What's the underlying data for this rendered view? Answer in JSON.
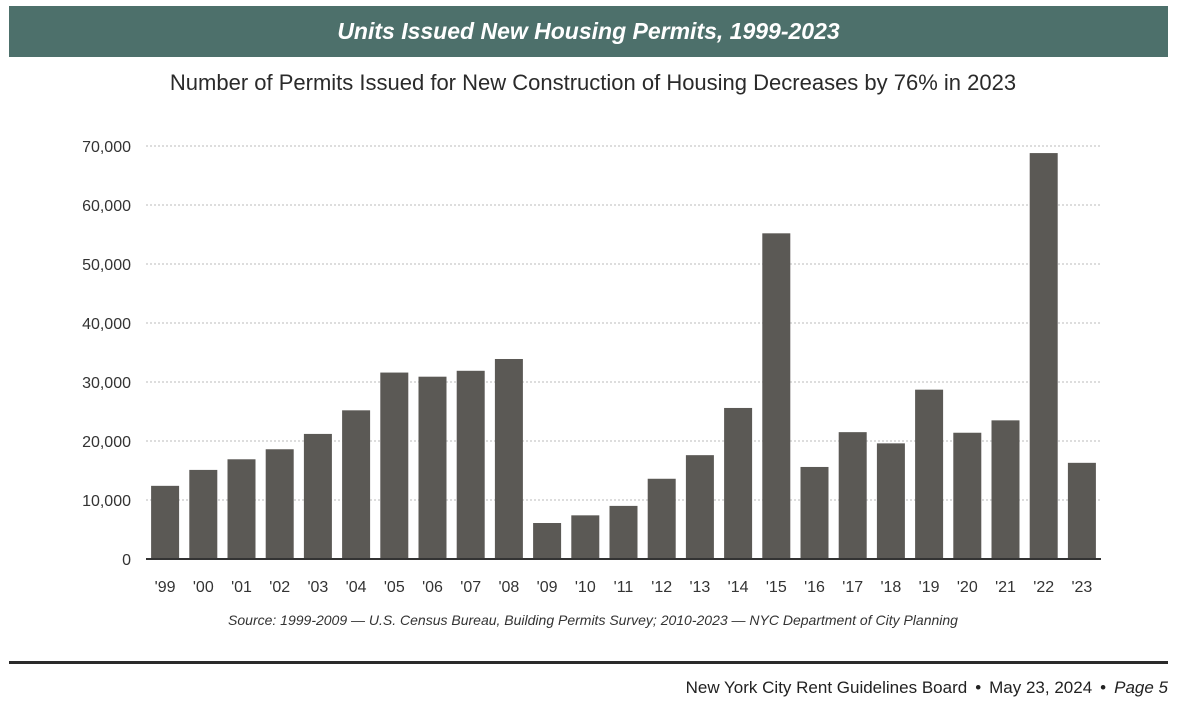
{
  "header": {
    "banner_title": "Units Issued New Housing Permits, 1999-2023",
    "subtitle": "Number of Permits Issued for New Construction of Housing Decreases by 76% in 2023"
  },
  "source_note": "Source: 1999-2009 — U.S. Census Bureau, Building Permits Survey; 2010-2023 — NYC Department of City Planning",
  "footer": {
    "organization": "New York City Rent Guidelines Board",
    "separator": "•",
    "date": "May 23, 2024",
    "page": "Page 5"
  },
  "colors": {
    "banner": "#4d706b",
    "bar": "#5b5955",
    "grid": "#bbbbbb",
    "axis": "#333333"
  },
  "chart_data": {
    "type": "bar",
    "title": "Number of Permits Issued for New Construction of Housing Decreases by 76% in 2023",
    "xlabel": "",
    "ylabel": "",
    "ylim": [
      0,
      70000
    ],
    "yticks": [
      0,
      10000,
      20000,
      30000,
      40000,
      50000,
      60000,
      70000
    ],
    "ytick_labels": [
      "0",
      "10,000",
      "20,000",
      "30,000",
      "40,000",
      "50,000",
      "60,000",
      "70,000"
    ],
    "grid": true,
    "categories": [
      "'99",
      "'00",
      "'01",
      "'02",
      "'03",
      "'04",
      "'05",
      "'06",
      "'07",
      "'08",
      "'09",
      "'10",
      "'11",
      "'12",
      "'13",
      "'14",
      "'15",
      "'16",
      "'17",
      "'18",
      "'19",
      "'20",
      "'21",
      "'22",
      "'23"
    ],
    "values": [
      12400,
      15100,
      16900,
      18600,
      21200,
      25200,
      31600,
      30900,
      31900,
      33900,
      6100,
      7400,
      9000,
      13600,
      17600,
      25600,
      55200,
      15600,
      21500,
      19600,
      28700,
      21400,
      23500,
      68800,
      16300
    ]
  }
}
